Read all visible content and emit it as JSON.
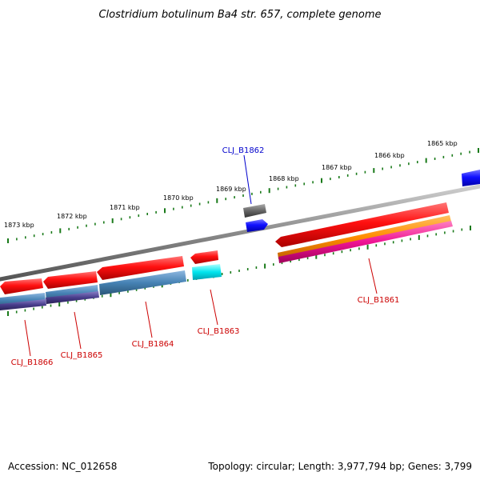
{
  "title": "Clostridium botulinum Ba4 str. 657, complete genome",
  "accession_label": "Accession: NC_012658",
  "summary_label": "Topology: circular; Length: 3,977,794 bp; Genes: 3,799",
  "scale_labels": [
    "1865 kbp",
    "1866 kbp",
    "1867 kbp",
    "1868 kbp",
    "1869 kbp",
    "1870 kbp",
    "1871 kbp",
    "1872 kbp",
    "1873 kbp"
  ],
  "genes": [
    {
      "label": "CLJ_B1861",
      "strand": "reverse",
      "color": "#cc0000"
    },
    {
      "label": "CLJ_B1862",
      "strand": "forward",
      "color": "#0000cc"
    },
    {
      "label": "CLJ_B1863",
      "strand": "reverse",
      "color": "#cc0000"
    },
    {
      "label": "CLJ_B1864",
      "strand": "reverse",
      "color": "#cc0000"
    },
    {
      "label": "CLJ_B1865",
      "strand": "reverse",
      "color": "#cc0000"
    },
    {
      "label": "CLJ_B1866",
      "strand": "reverse",
      "color": "#cc0000"
    }
  ],
  "colors": {
    "backbone": "#8a8a8a",
    "ticks": "#1a7a1a",
    "gene_forward": "#0000ee",
    "gene_reverse": "#ee0000",
    "gene_grey": "#555555",
    "orange": "#ff8c00",
    "magenta": "#ee1493",
    "steelblue": "#4682b4",
    "darkslateblue": "#483d8b",
    "cyan": "#00e5ee"
  }
}
